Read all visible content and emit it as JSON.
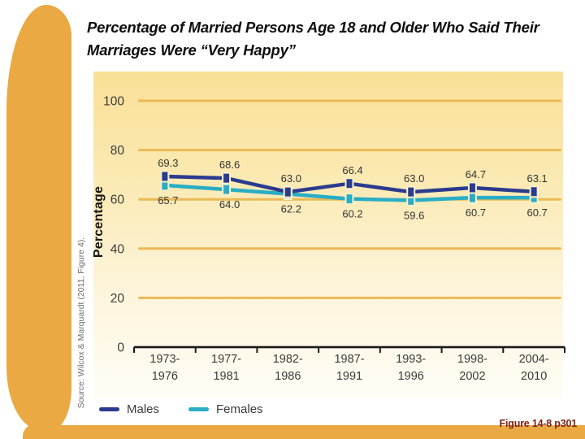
{
  "page": {
    "title_line1": "Percentage of Married Persons Age 18 and Older Who Said Their",
    "title_line2": "Marriages Were “Very Happy”",
    "figure_caption": "Figure 14-8 p301",
    "source_note": "Source: Wilcox & Marquardt (2011, Figure 4)."
  },
  "chart_data": {
    "type": "line",
    "title": "Percentage of Married Persons Age 18 and Older Who Said Their Marriages Were “Very Happy”",
    "ylabel": "Percentage",
    "xlabel": "",
    "categories": [
      "1973-1976",
      "1977-1981",
      "1982-1986",
      "1987-1991",
      "1993-1996",
      "1998-2002",
      "2004-2010"
    ],
    "series": [
      {
        "name": "Males",
        "color": "#2b3b8f",
        "values": [
          69.3,
          68.6,
          63.0,
          66.4,
          63.0,
          64.7,
          63.1
        ]
      },
      {
        "name": "Females",
        "color": "#29adc4",
        "values": [
          65.7,
          64.0,
          62.2,
          60.2,
          59.6,
          60.7,
          60.7
        ]
      }
    ],
    "yticks": [
      0,
      20,
      40,
      60,
      80,
      100
    ],
    "ylim": [
      0,
      100
    ],
    "grid": true,
    "value_labels": true,
    "legend_position": "bottom-left"
  },
  "colors": {
    "accent_orange": "#eaa942",
    "gridline": "#eab955",
    "axis": "#1a1a1a",
    "tick_text": "#3b3b3b",
    "value_label_text": "#333333",
    "panel_top": "#f9e096",
    "panel_bottom": "#fffdf6",
    "caption_text": "#7c2316",
    "marker_halo": "#fbf1cc"
  }
}
